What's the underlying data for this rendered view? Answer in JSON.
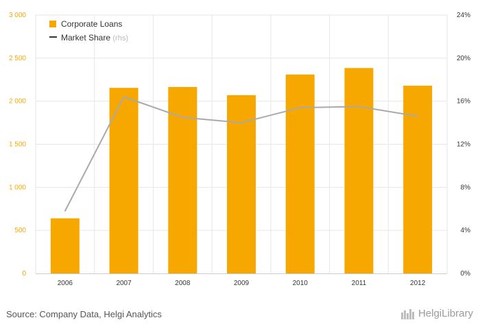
{
  "chart_data": {
    "type": "bar",
    "categories": [
      "2006",
      "2007",
      "2008",
      "2009",
      "2010",
      "2011",
      "2012"
    ],
    "series": [
      {
        "name": "Corporate Loans",
        "type": "bar",
        "axis": "left",
        "color": "#f7a800",
        "values": [
          640,
          2155,
          2165,
          2070,
          2310,
          2385,
          2180
        ]
      },
      {
        "name": "Market Share",
        "type": "line",
        "axis": "right",
        "color": "#a9a9a9",
        "values": [
          5.8,
          16.4,
          14.5,
          14.0,
          15.4,
          15.5,
          14.6
        ]
      }
    ],
    "legend_suffix": "(rhs)",
    "ylim_left": [
      0,
      3000
    ],
    "ylim_right": [
      0,
      24
    ],
    "left_ticks": [
      "0",
      "500",
      "1 000",
      "1 500",
      "2 000",
      "2 500",
      "3 000"
    ],
    "right_ticks": [
      "0%",
      "4%",
      "8%",
      "12%",
      "16%",
      "20%",
      "24%"
    ],
    "legend_position": "top-left",
    "grid": true
  },
  "footer": {
    "source": "Source: Company Data, Helgi Analytics",
    "brand": "HelgiLibrary"
  },
  "colors": {
    "left_axis_text": "#f7a800",
    "right_axis_text": "#333333",
    "grid": "#e6e6e6"
  }
}
